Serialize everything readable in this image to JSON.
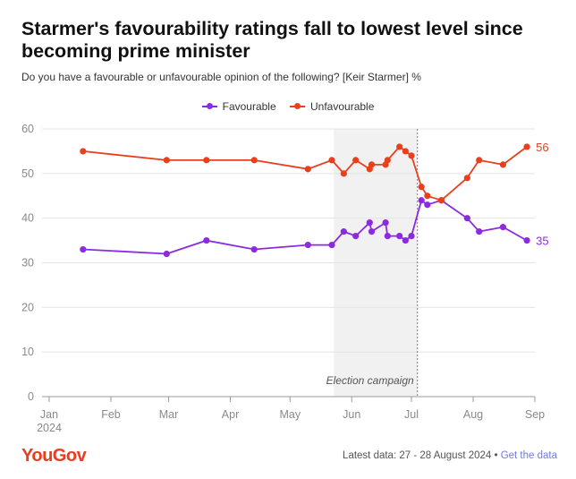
{
  "header": {
    "title": "Starmer's favourability ratings fall to lowest level since becoming prime minister",
    "subtitle": "Do you have a favourable or unfavourable opinion of the following? [Keir Starmer] %"
  },
  "footer": {
    "brand": "YouGov",
    "latest": "Latest data: 27 - 28 August 2024 • ",
    "link": "Get the data"
  },
  "colors": {
    "favourable": "#8a2be2",
    "unfavourable": "#e8401c",
    "shade": "#f1f1f1",
    "grid": "#e4e4e4"
  },
  "chart_data": {
    "type": "line",
    "title": "Starmer's favourability ratings fall to lowest level since becoming prime minister",
    "subtitle": "Do you have a favourable or unfavourable opinion of the following? [Keir Starmer] %",
    "ylim": [
      0,
      60
    ],
    "yticks": [
      0,
      10,
      20,
      30,
      40,
      50,
      60
    ],
    "xlim": [
      "2024-01-01",
      "2024-09-01"
    ],
    "xticks": [
      {
        "date": "2024-01-01",
        "label": "Jan",
        "sublabel": "2024"
      },
      {
        "date": "2024-02-01",
        "label": "Feb",
        "sublabel": ""
      },
      {
        "date": "2024-03-01",
        "label": "Mar",
        "sublabel": ""
      },
      {
        "date": "2024-04-01",
        "label": "Apr",
        "sublabel": ""
      },
      {
        "date": "2024-05-01",
        "label": "May",
        "sublabel": ""
      },
      {
        "date": "2024-06-01",
        "label": "Jun",
        "sublabel": ""
      },
      {
        "date": "2024-07-01",
        "label": "Jul",
        "sublabel": ""
      },
      {
        "date": "2024-08-01",
        "label": "Aug",
        "sublabel": ""
      },
      {
        "date": "2024-09-01",
        "label": "Sep",
        "sublabel": ""
      }
    ],
    "legend_position": "top-center",
    "shaded_region": {
      "start": "2024-05-23",
      "end": "2024-07-04",
      "label": "Election campaign"
    },
    "series": [
      {
        "name": "Favourable",
        "color": "#8a2be2",
        "end_label": "35",
        "points": [
          {
            "x": "2024-01-18",
            "y": 33
          },
          {
            "x": "2024-02-29",
            "y": 32
          },
          {
            "x": "2024-03-20",
            "y": 35
          },
          {
            "x": "2024-04-13",
            "y": 33
          },
          {
            "x": "2024-05-10",
            "y": 34
          },
          {
            "x": "2024-05-22",
            "y": 34
          },
          {
            "x": "2024-05-28",
            "y": 37
          },
          {
            "x": "2024-06-03",
            "y": 36
          },
          {
            "x": "2024-06-10",
            "y": 39
          },
          {
            "x": "2024-06-11",
            "y": 37
          },
          {
            "x": "2024-06-18",
            "y": 39
          },
          {
            "x": "2024-06-19",
            "y": 36
          },
          {
            "x": "2024-06-25",
            "y": 36
          },
          {
            "x": "2024-06-28",
            "y": 35
          },
          {
            "x": "2024-07-01",
            "y": 36
          },
          {
            "x": "2024-07-06",
            "y": 44
          },
          {
            "x": "2024-07-09",
            "y": 43
          },
          {
            "x": "2024-07-16",
            "y": 44
          },
          {
            "x": "2024-07-29",
            "y": 40
          },
          {
            "x": "2024-08-04",
            "y": 37
          },
          {
            "x": "2024-08-16",
            "y": 38
          },
          {
            "x": "2024-08-28",
            "y": 35
          }
        ]
      },
      {
        "name": "Unfavourable",
        "color": "#e8401c",
        "end_label": "56",
        "points": [
          {
            "x": "2024-01-18",
            "y": 55
          },
          {
            "x": "2024-02-29",
            "y": 53
          },
          {
            "x": "2024-03-20",
            "y": 53
          },
          {
            "x": "2024-04-13",
            "y": 53
          },
          {
            "x": "2024-05-10",
            "y": 51
          },
          {
            "x": "2024-05-22",
            "y": 53
          },
          {
            "x": "2024-05-28",
            "y": 50
          },
          {
            "x": "2024-06-03",
            "y": 53
          },
          {
            "x": "2024-06-10",
            "y": 51
          },
          {
            "x": "2024-06-11",
            "y": 52
          },
          {
            "x": "2024-06-18",
            "y": 52
          },
          {
            "x": "2024-06-19",
            "y": 53
          },
          {
            "x": "2024-06-25",
            "y": 56
          },
          {
            "x": "2024-06-28",
            "y": 55
          },
          {
            "x": "2024-07-01",
            "y": 54
          },
          {
            "x": "2024-07-06",
            "y": 47
          },
          {
            "x": "2024-07-09",
            "y": 45
          },
          {
            "x": "2024-07-16",
            "y": 44
          },
          {
            "x": "2024-07-29",
            "y": 49
          },
          {
            "x": "2024-08-04",
            "y": 53
          },
          {
            "x": "2024-08-16",
            "y": 52
          },
          {
            "x": "2024-08-28",
            "y": 56
          }
        ]
      }
    ]
  }
}
